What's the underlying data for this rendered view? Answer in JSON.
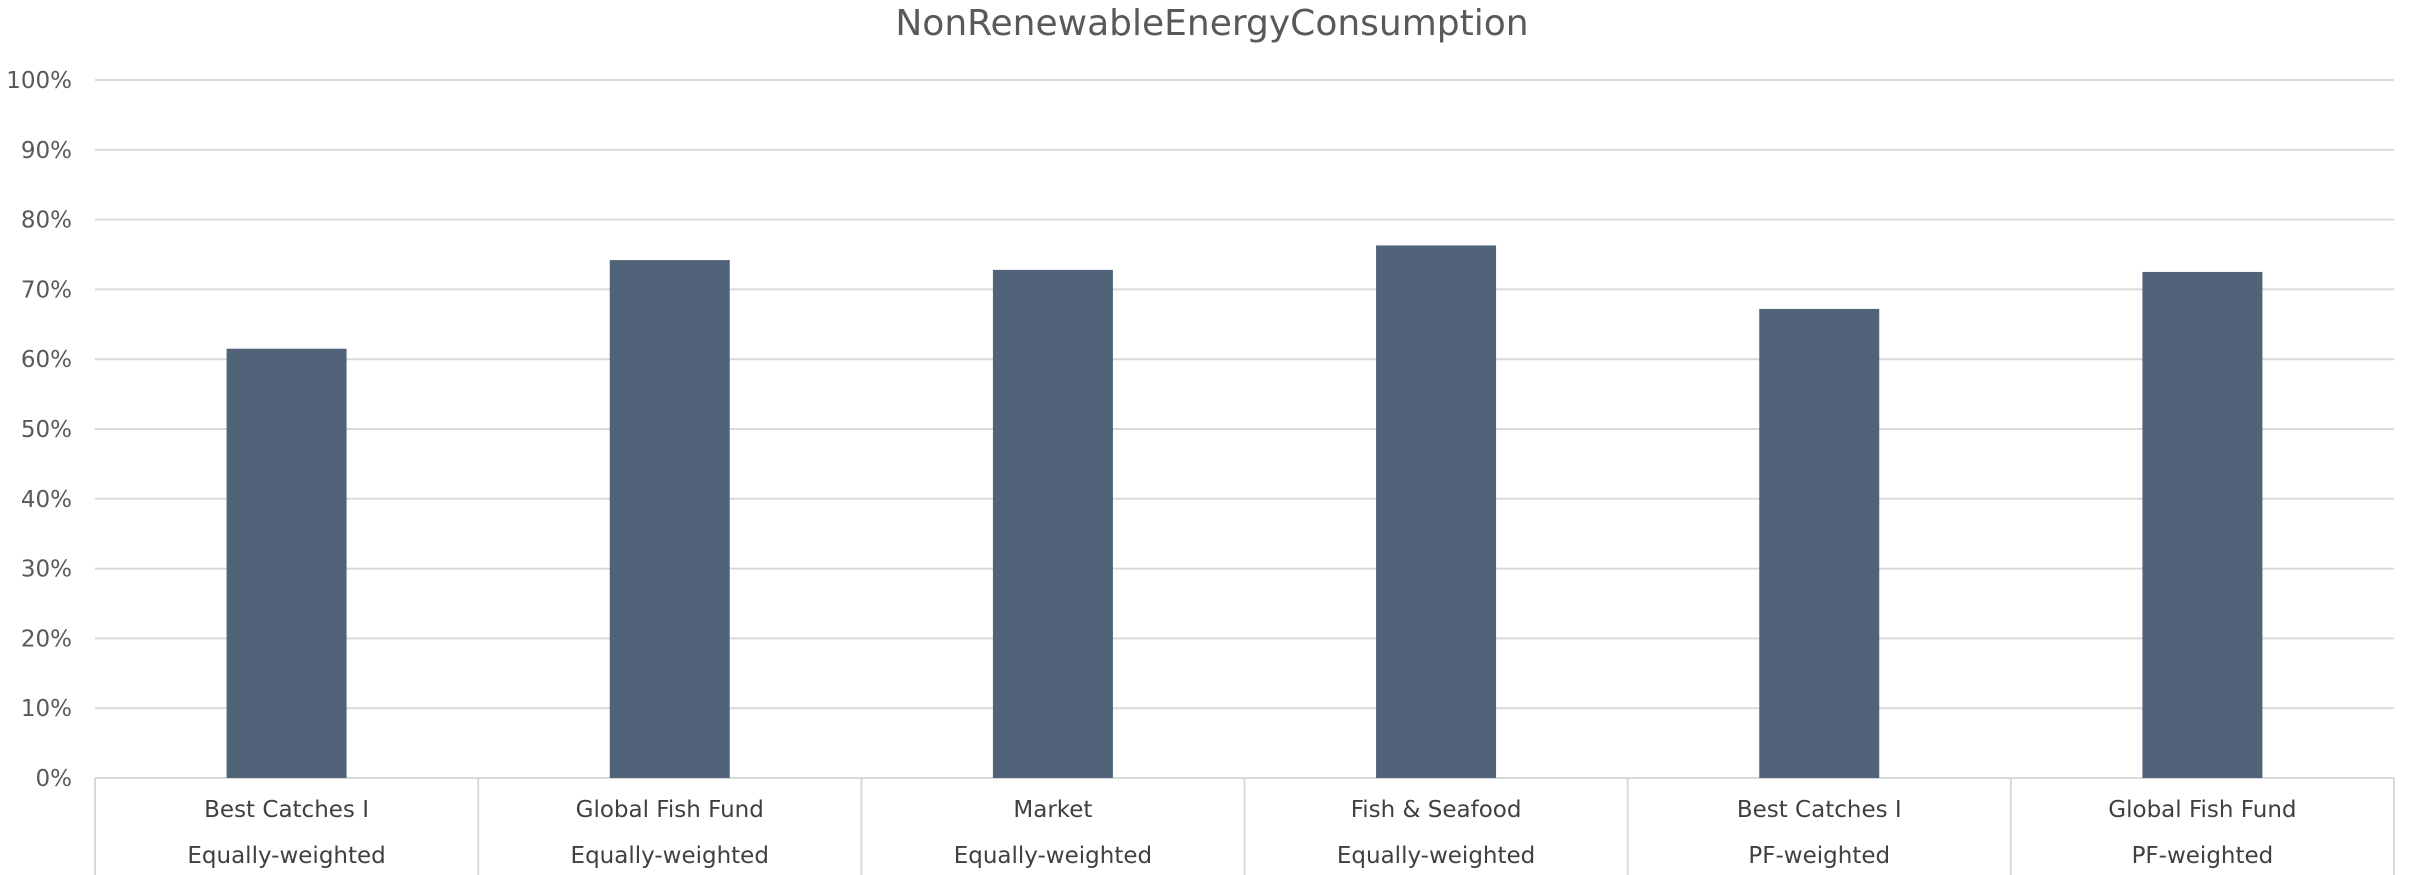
{
  "chart_data": {
    "type": "bar",
    "title": "NonRenewableEnergyConsumption",
    "xlabel": "",
    "ylabel": "",
    "ylim": [
      0,
      1
    ],
    "y_ticks": [
      "0%",
      "10%",
      "20%",
      "30%",
      "40%",
      "50%",
      "60%",
      "70%",
      "80%",
      "90%",
      "100%"
    ],
    "grid": true,
    "legend": "none",
    "categories": [
      {
        "line1": "Best Catches I",
        "line2": "Equally-weighted"
      },
      {
        "line1": "Global Fish Fund",
        "line2": "Equally-weighted"
      },
      {
        "line1": "Market",
        "line2": "Equally-weighted"
      },
      {
        "line1": "Fish & Seafood",
        "line2": "Equally-weighted"
      },
      {
        "line1": "Best Catches I",
        "line2": "PF-weighted"
      },
      {
        "line1": "Global Fish Fund",
        "line2": "PF-weighted"
      }
    ],
    "values": [
      0.615,
      0.742,
      0.728,
      0.763,
      0.672,
      0.725
    ],
    "colors": {
      "bar": "#506378",
      "grid": "#d9d9d9",
      "axis": "#d9d9d9"
    }
  }
}
